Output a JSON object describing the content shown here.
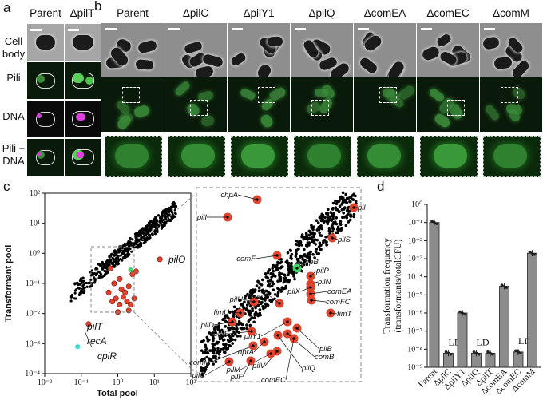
{
  "panel_a": {
    "letter": "a",
    "col_headers": [
      "Parent",
      "ΔpilT"
    ],
    "row_labels": [
      "Cell body",
      "Pili",
      "DNA",
      "Pili + DNA"
    ]
  },
  "panel_b": {
    "letter": "b",
    "col_headers": [
      "Parent",
      "ΔpilC",
      "ΔpilY1",
      "ΔpilQ",
      "ΔcomEA",
      "ΔcomEC",
      "ΔcomM"
    ]
  },
  "panel_c": {
    "letter": "c",
    "xlabel": "Total pool",
    "ylabel": "Transformant pool",
    "x_ticks": [
      "10⁻²",
      "10⁻¹",
      "10⁰",
      "10¹",
      "10²"
    ],
    "y_ticks": [
      "10²",
      "10¹",
      "10⁰",
      "10⁻¹",
      "10⁻²",
      "10⁻³",
      "10⁻⁴"
    ],
    "main_labels": [
      "pilO",
      "pilT",
      "recA",
      "cpiR"
    ],
    "inset_labels": [
      "chpA",
      "pilI",
      "pilR",
      "pilS",
      "comF",
      "tfpB",
      "pilP",
      "pilN",
      "pilX",
      "comEA",
      "comFC",
      "pilU",
      "fimU",
      "comP",
      "fimT",
      "pilD",
      "pilY1",
      "comE",
      "pilB",
      "comB",
      "pilQ",
      "dprA",
      "pilV",
      "comM",
      "pilM",
      "pilC",
      "pilF",
      "comEC"
    ]
  },
  "chart_data": {
    "type": "bar",
    "title": "",
    "ylabel": "Transformation frequency (transformants/totalCFU)",
    "xlabel": "",
    "categories": [
      "Parent",
      "ΔpilC",
      "ΔpilY1",
      "ΔpilQ",
      "ΔpilT",
      "ΔcomEA",
      "ΔcomEC",
      "ΔcomM"
    ],
    "values": [
      0.1,
      6e-09,
      1e-06,
      6e-09,
      6e-09,
      3e-05,
      7e-09,
      0.002
    ],
    "annotations": [
      "",
      "LD",
      "",
      "LD",
      "",
      "",
      "LD",
      ""
    ],
    "y_scale": "log",
    "ylim": [
      1e-09,
      1
    ],
    "y_ticks": [
      "10⁰",
      "10⁻¹",
      "10⁻²",
      "10⁻³",
      "10⁻⁴",
      "10⁻⁵",
      "10⁻⁶",
      "10⁻⁷",
      "10⁻⁸",
      "10⁻⁹"
    ],
    "letter": "d",
    "bar_color": "#8c8c8c"
  }
}
